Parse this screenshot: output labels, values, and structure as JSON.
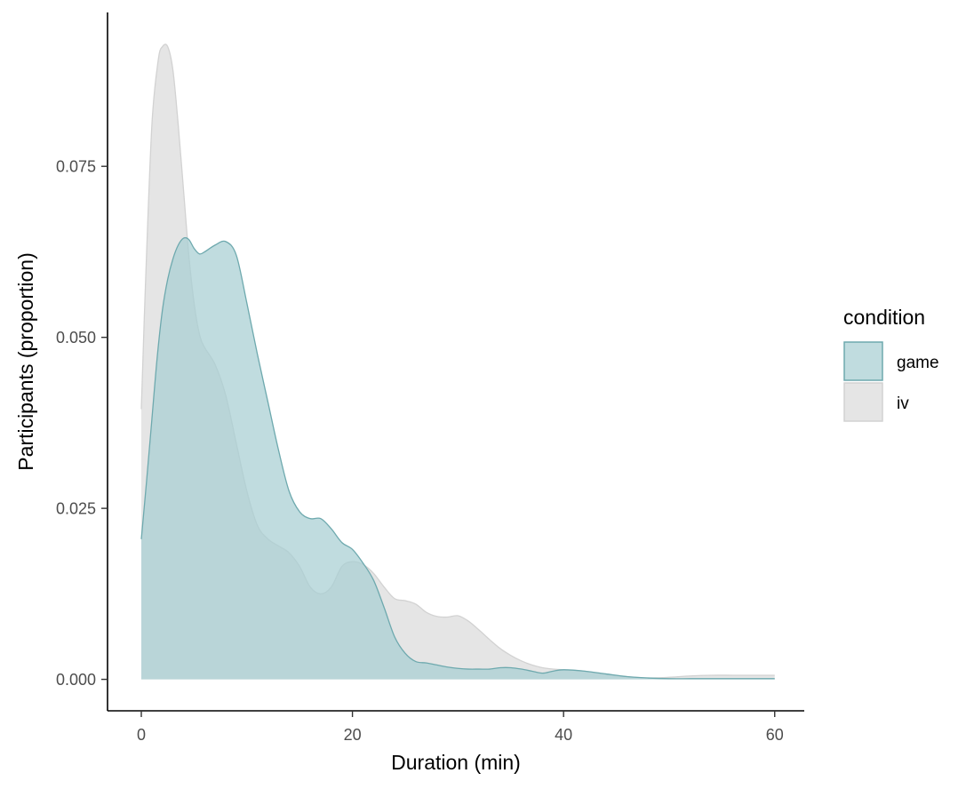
{
  "chart_data": {
    "type": "area",
    "xlabel": "Duration (min)",
    "ylabel": "Participants (proportion)",
    "xlim": [
      -3.2,
      62.8
    ],
    "ylim": [
      -0.0046,
      0.0975
    ],
    "x_ticks": [
      0,
      20,
      40,
      60
    ],
    "x_tick_labels": [
      "0",
      "20",
      "40",
      "60"
    ],
    "y_ticks": [
      0.0,
      0.025,
      0.05,
      0.075
    ],
    "y_tick_labels": [
      "0.000",
      "0.025",
      "0.050",
      "0.075"
    ],
    "grid": false,
    "legend": {
      "title": "condition",
      "position": "right"
    },
    "series": [
      {
        "name": "iv",
        "fill": "#e5e5e5",
        "stroke": "#d2d2d2",
        "x": [
          0,
          0.4,
          1,
          1.6,
          2,
          2.5,
          3,
          3.5,
          4,
          4.5,
          5,
          5.5,
          6,
          7,
          8,
          9,
          10,
          11,
          12,
          13,
          14,
          15,
          16,
          17,
          18,
          19,
          20,
          21,
          22,
          23,
          24,
          25,
          26,
          27,
          28,
          29,
          30,
          31,
          32,
          33,
          34,
          35,
          36,
          37,
          38,
          39,
          40,
          42,
          44,
          46,
          48,
          50,
          52,
          54,
          56,
          58,
          60
        ],
        "values": [
          0.0395,
          0.058,
          0.081,
          0.0905,
          0.0925,
          0.0925,
          0.089,
          0.081,
          0.0715,
          0.062,
          0.055,
          0.0505,
          0.0485,
          0.046,
          0.0415,
          0.0345,
          0.0275,
          0.0225,
          0.0205,
          0.0195,
          0.0185,
          0.0165,
          0.0135,
          0.0125,
          0.0135,
          0.0165,
          0.0172,
          0.0168,
          0.0155,
          0.0135,
          0.0118,
          0.0115,
          0.011,
          0.0098,
          0.0092,
          0.0091,
          0.0093,
          0.0085,
          0.0072,
          0.0058,
          0.0045,
          0.0035,
          0.0027,
          0.0021,
          0.0017,
          0.0015,
          0.0014,
          0.0012,
          0.0007,
          0.0004,
          0.0002,
          0.0003,
          0.0005,
          0.0006,
          0.0006,
          0.0006,
          0.0006
        ]
      },
      {
        "name": "game",
        "fill": "#a8cfd2",
        "fill_opacity": 0.72,
        "stroke": "#6ea9ae",
        "x": [
          0,
          0.5,
          1,
          1.5,
          2,
          2.5,
          3,
          3.5,
          4,
          4.5,
          5,
          5.5,
          6,
          7,
          8,
          9,
          10,
          11,
          12,
          13,
          14,
          15,
          16,
          17,
          18,
          19,
          20,
          21,
          22,
          23,
          24,
          25,
          26,
          27,
          28,
          29,
          30,
          31,
          32,
          33,
          34,
          35,
          36,
          37,
          38,
          39,
          40,
          42,
          44,
          46,
          48,
          50,
          52,
          54,
          56,
          58,
          60
        ],
        "values": [
          0.0205,
          0.029,
          0.038,
          0.047,
          0.054,
          0.0585,
          0.0615,
          0.0635,
          0.0645,
          0.0643,
          0.063,
          0.0622,
          0.0625,
          0.0635,
          0.064,
          0.062,
          0.055,
          0.0475,
          0.0405,
          0.0335,
          0.0275,
          0.0245,
          0.0235,
          0.0235,
          0.022,
          0.02,
          0.019,
          0.017,
          0.0145,
          0.0105,
          0.0062,
          0.0038,
          0.0026,
          0.0024,
          0.0021,
          0.0018,
          0.0016,
          0.0015,
          0.0015,
          0.0015,
          0.0017,
          0.0017,
          0.0015,
          0.0012,
          0.0009,
          0.0012,
          0.0014,
          0.0012,
          0.0008,
          0.0004,
          0.0002,
          0.0001,
          0.0001,
          0.0001,
          0.0001,
          0.0001,
          0.0001
        ]
      }
    ]
  }
}
